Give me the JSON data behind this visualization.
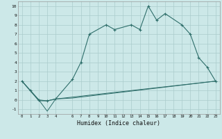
{
  "xlabel": "Humidex (Indice chaleur)",
  "background_color": "#cce8e8",
  "line_color": "#2e6e6a",
  "xlim": [
    -0.5,
    23.5
  ],
  "ylim": [
    -1.5,
    10.5
  ],
  "xticks": [
    0,
    1,
    2,
    3,
    4,
    6,
    7,
    8,
    9,
    10,
    11,
    12,
    13,
    14,
    15,
    16,
    17,
    18,
    19,
    20,
    21,
    22,
    23
  ],
  "yticks": [
    -1,
    0,
    1,
    2,
    3,
    4,
    5,
    6,
    7,
    8,
    9,
    10
  ],
  "series1_x": [
    0,
    1,
    2,
    3,
    4,
    6,
    7,
    8,
    10,
    11,
    13,
    14,
    15,
    16,
    17,
    19,
    20,
    21,
    22,
    23
  ],
  "series1_y": [
    2.0,
    1.0,
    0.0,
    -0.1,
    0.1,
    2.2,
    4.0,
    7.0,
    8.0,
    7.5,
    8.0,
    7.5,
    10.0,
    8.5,
    9.2,
    8.0,
    7.0,
    4.5,
    3.5,
    2.0
  ],
  "series2_x": [
    0,
    2,
    3,
    4,
    6,
    23
  ],
  "series2_y": [
    2.0,
    0.0,
    -1.2,
    0.1,
    0.2,
    2.0
  ],
  "series3_x": [
    0,
    2,
    3,
    4,
    23
  ],
  "series3_y": [
    2.0,
    -0.1,
    -0.1,
    0.1,
    2.0
  ],
  "grid_color": "#aacccc",
  "marker": "+"
}
